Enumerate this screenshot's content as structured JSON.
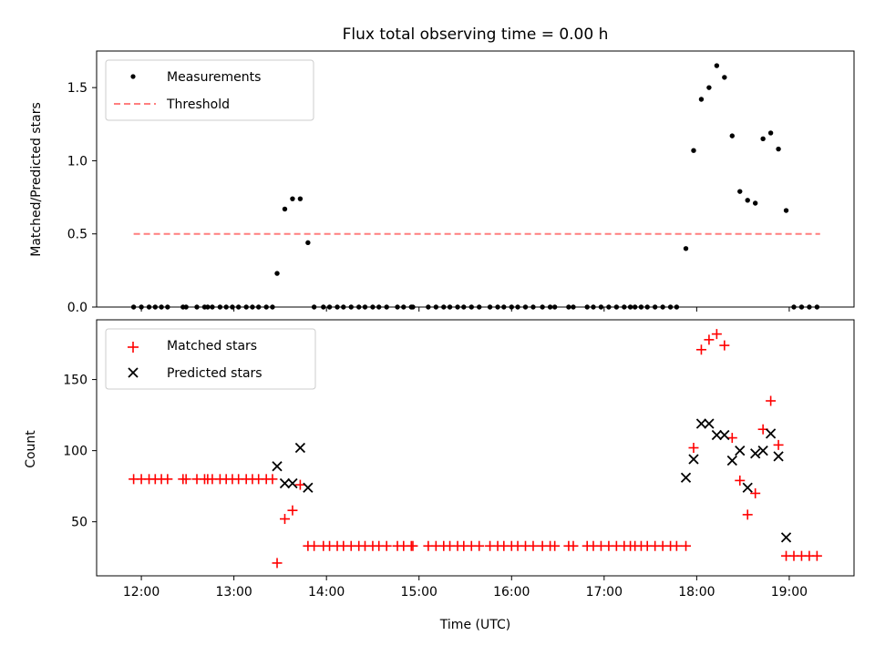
{
  "chart_data": [
    {
      "type": "scatter",
      "title": "Flux total observing time = 0.00 h",
      "ylabel": "Matched/Predicted stars",
      "xlabel": "",
      "xlim": [
        "11:31",
        "19:42"
      ],
      "ylim": [
        0,
        1.75
      ],
      "yticks": [
        0.0,
        0.5,
        1.0,
        1.5
      ],
      "ytick_labels": [
        "0.0",
        "0.5",
        "1.0",
        "1.5"
      ],
      "xticks": [
        "12:00",
        "13:00",
        "14:00",
        "15:00",
        "16:00",
        "17:00",
        "18:00",
        "19:00"
      ],
      "show_xtick_labels": false,
      "legend_position": "upper left",
      "legend": [
        "Measurements",
        "Threshold"
      ],
      "series": [
        {
          "name": "Measurements",
          "marker": "dot",
          "color": "#000000",
          "points": [
            [
              "11:55",
              0.0
            ],
            [
              "12:00",
              0.0
            ],
            [
              "12:05",
              0.0
            ],
            [
              "12:09",
              0.0
            ],
            [
              "12:13",
              0.0
            ],
            [
              "12:17",
              0.0
            ],
            [
              "12:27",
              0.0
            ],
            [
              "12:29",
              0.0
            ],
            [
              "12:36",
              0.0
            ],
            [
              "12:41",
              0.0
            ],
            [
              "12:43",
              0.0
            ],
            [
              "12:46",
              0.0
            ],
            [
              "12:51",
              0.0
            ],
            [
              "12:55",
              0.0
            ],
            [
              "12:59",
              0.0
            ],
            [
              "13:03",
              0.0
            ],
            [
              "13:08",
              0.0
            ],
            [
              "13:12",
              0.0
            ],
            [
              "13:16",
              0.0
            ],
            [
              "13:21",
              0.0
            ],
            [
              "13:25",
              0.0
            ],
            [
              "13:28",
              0.23
            ],
            [
              "13:33",
              0.67
            ],
            [
              "13:38",
              0.74
            ],
            [
              "13:43",
              0.74
            ],
            [
              "13:48",
              0.44
            ],
            [
              "13:52",
              0.0
            ],
            [
              "13:58",
              0.0
            ],
            [
              "14:02",
              0.0
            ],
            [
              "14:07",
              0.0
            ],
            [
              "14:11",
              0.0
            ],
            [
              "14:16",
              0.0
            ],
            [
              "14:21",
              0.0
            ],
            [
              "14:25",
              0.0
            ],
            [
              "14:30",
              0.0
            ],
            [
              "14:34",
              0.0
            ],
            [
              "14:39",
              0.0
            ],
            [
              "14:46",
              0.0
            ],
            [
              "14:50",
              0.0
            ],
            [
              "14:55",
              0.0
            ],
            [
              "14:56",
              0.0
            ],
            [
              "15:06",
              0.0
            ],
            [
              "15:11",
              0.0
            ],
            [
              "15:16",
              0.0
            ],
            [
              "15:20",
              0.0
            ],
            [
              "15:25",
              0.0
            ],
            [
              "15:29",
              0.0
            ],
            [
              "15:34",
              0.0
            ],
            [
              "15:39",
              0.0
            ],
            [
              "15:46",
              0.0
            ],
            [
              "15:51",
              0.0
            ],
            [
              "15:55",
              0.0
            ],
            [
              "16:00",
              0.0
            ],
            [
              "16:04",
              0.0
            ],
            [
              "16:09",
              0.0
            ],
            [
              "16:14",
              0.0
            ],
            [
              "16:20",
              0.0
            ],
            [
              "16:25",
              0.0
            ],
            [
              "16:28",
              0.0
            ],
            [
              "16:37",
              0.0
            ],
            [
              "16:40",
              0.0
            ],
            [
              "16:49",
              0.0
            ],
            [
              "16:53",
              0.0
            ],
            [
              "16:58",
              0.0
            ],
            [
              "17:03",
              0.0
            ],
            [
              "17:08",
              0.0
            ],
            [
              "17:13",
              0.0
            ],
            [
              "17:17",
              0.0
            ],
            [
              "17:20",
              0.0
            ],
            [
              "17:24",
              0.0
            ],
            [
              "17:28",
              0.0
            ],
            [
              "17:33",
              0.0
            ],
            [
              "17:38",
              0.0
            ],
            [
              "17:43",
              0.0
            ],
            [
              "17:47",
              0.0
            ],
            [
              "17:53",
              0.4
            ],
            [
              "17:58",
              1.07
            ],
            [
              "18:03",
              1.42
            ],
            [
              "18:08",
              1.5
            ],
            [
              "18:13",
              1.65
            ],
            [
              "18:18",
              1.57
            ],
            [
              "18:23",
              1.17
            ],
            [
              "18:28",
              0.79
            ],
            [
              "18:33",
              0.73
            ],
            [
              "18:38",
              0.71
            ],
            [
              "18:43",
              1.15
            ],
            [
              "18:48",
              1.19
            ],
            [
              "18:53",
              1.08
            ],
            [
              "18:58",
              0.66
            ],
            [
              "19:03",
              0.0
            ],
            [
              "19:08",
              0.0
            ],
            [
              "19:13",
              0.0
            ],
            [
              "19:18",
              0.0
            ]
          ]
        },
        {
          "name": "Threshold",
          "type": "line",
          "style": "dashed",
          "color": "#ff7f7f",
          "points": [
            [
              "11:55",
              0.5
            ],
            [
              "19:20",
              0.5
            ]
          ]
        }
      ]
    },
    {
      "type": "scatter",
      "title": "",
      "ylabel": "Count",
      "xlabel": "Time (UTC)",
      "xlim": [
        "11:31",
        "19:42"
      ],
      "ylim": [
        12,
        192
      ],
      "yticks": [
        50,
        100,
        150
      ],
      "ytick_labels": [
        "50",
        "100",
        "150"
      ],
      "xticks": [
        "12:00",
        "13:00",
        "14:00",
        "15:00",
        "16:00",
        "17:00",
        "18:00",
        "19:00"
      ],
      "xtick_labels": [
        "12:00",
        "13:00",
        "14:00",
        "15:00",
        "16:00",
        "17:00",
        "18:00",
        "19:00"
      ],
      "legend_position": "upper left",
      "legend": [
        "Matched stars",
        "Predicted stars"
      ],
      "series": [
        {
          "name": "Matched stars",
          "marker": "plus",
          "color": "#ff0000",
          "points": [
            [
              "11:55",
              80
            ],
            [
              "12:00",
              80
            ],
            [
              "12:05",
              80
            ],
            [
              "12:09",
              80
            ],
            [
              "12:13",
              80
            ],
            [
              "12:17",
              80
            ],
            [
              "12:27",
              80
            ],
            [
              "12:29",
              80
            ],
            [
              "12:36",
              80
            ],
            [
              "12:41",
              80
            ],
            [
              "12:43",
              80
            ],
            [
              "12:46",
              80
            ],
            [
              "12:51",
              80
            ],
            [
              "12:55",
              80
            ],
            [
              "12:59",
              80
            ],
            [
              "13:03",
              80
            ],
            [
              "13:08",
              80
            ],
            [
              "13:12",
              80
            ],
            [
              "13:16",
              80
            ],
            [
              "13:21",
              80
            ],
            [
              "13:25",
              80
            ],
            [
              "13:28",
              21
            ],
            [
              "13:33",
              52
            ],
            [
              "13:38",
              58
            ],
            [
              "13:43",
              76
            ],
            [
              "13:48",
              33
            ],
            [
              "13:52",
              33
            ],
            [
              "13:58",
              33
            ],
            [
              "14:02",
              33
            ],
            [
              "14:07",
              33
            ],
            [
              "14:11",
              33
            ],
            [
              "14:16",
              33
            ],
            [
              "14:21",
              33
            ],
            [
              "14:25",
              33
            ],
            [
              "14:30",
              33
            ],
            [
              "14:34",
              33
            ],
            [
              "14:39",
              33
            ],
            [
              "14:46",
              33
            ],
            [
              "14:50",
              33
            ],
            [
              "14:55",
              33
            ],
            [
              "14:56",
              33
            ],
            [
              "15:06",
              33
            ],
            [
              "15:11",
              33
            ],
            [
              "15:16",
              33
            ],
            [
              "15:20",
              33
            ],
            [
              "15:25",
              33
            ],
            [
              "15:29",
              33
            ],
            [
              "15:34",
              33
            ],
            [
              "15:39",
              33
            ],
            [
              "15:46",
              33
            ],
            [
              "15:51",
              33
            ],
            [
              "15:55",
              33
            ],
            [
              "16:00",
              33
            ],
            [
              "16:04",
              33
            ],
            [
              "16:09",
              33
            ],
            [
              "16:14",
              33
            ],
            [
              "16:20",
              33
            ],
            [
              "16:25",
              33
            ],
            [
              "16:28",
              33
            ],
            [
              "16:37",
              33
            ],
            [
              "16:40",
              33
            ],
            [
              "16:49",
              33
            ],
            [
              "16:53",
              33
            ],
            [
              "16:58",
              33
            ],
            [
              "17:03",
              33
            ],
            [
              "17:08",
              33
            ],
            [
              "17:13",
              33
            ],
            [
              "17:17",
              33
            ],
            [
              "17:20",
              33
            ],
            [
              "17:24",
              33
            ],
            [
              "17:28",
              33
            ],
            [
              "17:33",
              33
            ],
            [
              "17:38",
              33
            ],
            [
              "17:43",
              33
            ],
            [
              "17:47",
              33
            ],
            [
              "17:53",
              33
            ],
            [
              "17:58",
              102
            ],
            [
              "18:03",
              171
            ],
            [
              "18:08",
              178
            ],
            [
              "18:13",
              182
            ],
            [
              "18:18",
              174
            ],
            [
              "18:23",
              109
            ],
            [
              "18:28",
              79
            ],
            [
              "18:33",
              55
            ],
            [
              "18:38",
              70
            ],
            [
              "18:43",
              115
            ],
            [
              "18:48",
              135
            ],
            [
              "18:53",
              104
            ],
            [
              "18:58",
              26
            ],
            [
              "19:03",
              26
            ],
            [
              "19:08",
              26
            ],
            [
              "19:13",
              26
            ],
            [
              "19:18",
              26
            ]
          ]
        },
        {
          "name": "Predicted stars",
          "marker": "x",
          "color": "#000000",
          "points": [
            [
              "13:28",
              89
            ],
            [
              "13:33",
              77
            ],
            [
              "13:38",
              77
            ],
            [
              "13:43",
              102
            ],
            [
              "13:48",
              74
            ],
            [
              "17:53",
              81
            ],
            [
              "17:58",
              94
            ],
            [
              "18:03",
              119
            ],
            [
              "18:08",
              119
            ],
            [
              "18:13",
              111
            ],
            [
              "18:18",
              111
            ],
            [
              "18:23",
              93
            ],
            [
              "18:28",
              100
            ],
            [
              "18:33",
              74
            ],
            [
              "18:38",
              98
            ],
            [
              "18:43",
              100
            ],
            [
              "18:48",
              112
            ],
            [
              "18:53",
              96
            ],
            [
              "18:58",
              39
            ]
          ]
        }
      ]
    }
  ]
}
